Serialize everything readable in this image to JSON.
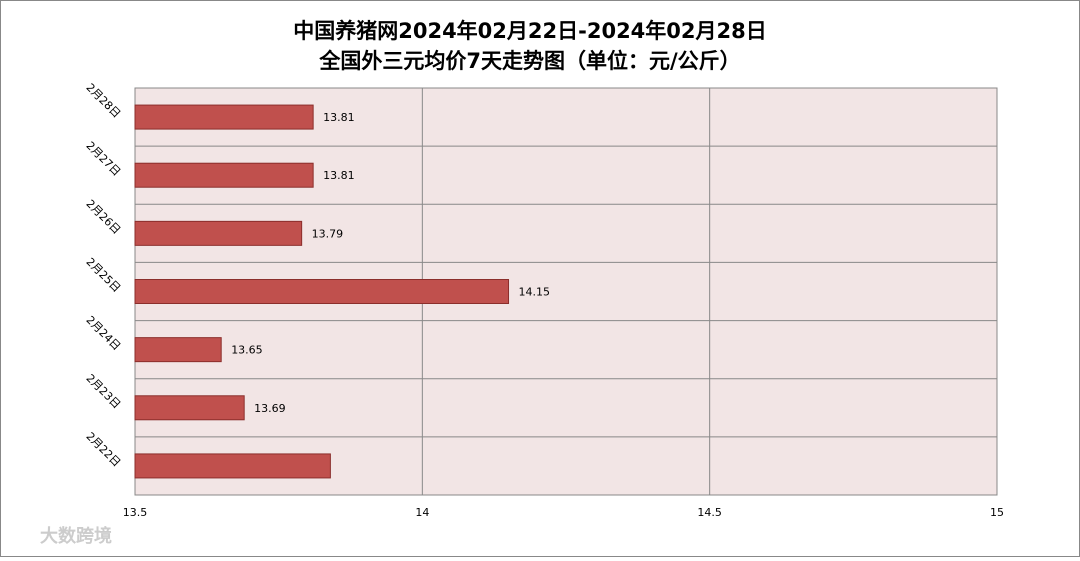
{
  "chart_data": {
    "type": "hbar",
    "title": "中国养猪网2024年02月22日-2024年02月28日",
    "subtitle": "全国外三元均价7天走势图（单位：元/公斤）",
    "categories": [
      "2月28日",
      "2月27日",
      "2月26日",
      "2月25日",
      "2月24日",
      "2月23日",
      "2月22日"
    ],
    "values": [
      13.81,
      13.81,
      13.79,
      14.15,
      13.65,
      13.69,
      13.84
    ],
    "value_labels": [
      "13.81",
      "13.81",
      "13.79",
      "14.15",
      "13.65",
      "13.69",
      null
    ],
    "color": "#c0504d",
    "xlim": [
      13.5,
      15
    ],
    "xticks": [
      13.5,
      14,
      14.5,
      15
    ],
    "grid": true,
    "watermark": "大数跨境"
  }
}
